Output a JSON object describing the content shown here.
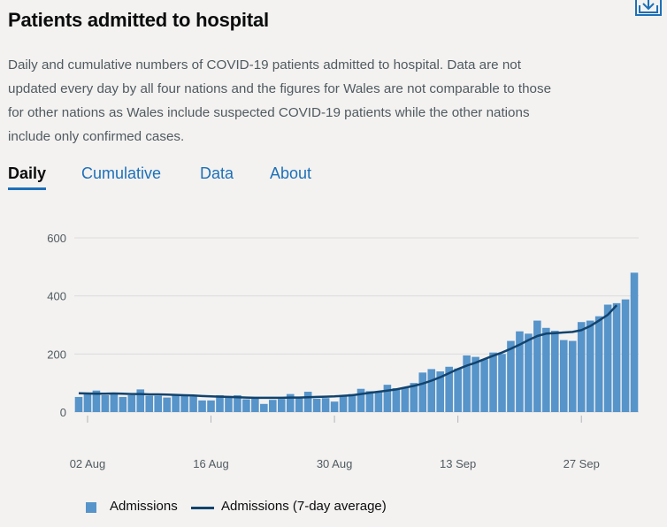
{
  "header": {
    "title": "Patients admitted to hospital",
    "download_icon": "download-icon"
  },
  "description": "Daily and cumulative numbers of COVID-19 patients admitted to hospital. Data are not updated every day by all four nations and the figures for Wales are not comparable to those for other nations as Wales include suspected COVID-19 patients while the other nations include only confirmed cases.",
  "tabs": [
    {
      "label": "Daily",
      "active": true
    },
    {
      "label": "Cumulative",
      "active": false
    },
    {
      "label": "Data",
      "active": false
    },
    {
      "label": "About",
      "active": false
    }
  ],
  "colors": {
    "bars": "#5694ca",
    "average_line": "#12436d",
    "link": "#1d70b8",
    "axis_text": "#505a5f"
  },
  "chart_data": {
    "type": "bar",
    "title": "",
    "xlabel": "",
    "ylabel": "",
    "ylim": [
      0,
      600
    ],
    "yticks": [
      "0",
      "200",
      "400",
      "600"
    ],
    "x_start": "2020-08-01",
    "xticks": [
      {
        "date": "2020-08-02",
        "label": "02 Aug"
      },
      {
        "date": "2020-08-16",
        "label": "16 Aug"
      },
      {
        "date": "2020-08-30",
        "label": "30 Aug"
      },
      {
        "date": "2020-09-13",
        "label": "13 Sep"
      },
      {
        "date": "2020-09-27",
        "label": "27 Sep"
      }
    ],
    "grid": true,
    "legend_position": "bottom",
    "series": [
      {
        "name": "Admissions",
        "kind": "bar",
        "values": [
          52,
          62,
          74,
          58,
          62,
          52,
          58,
          78,
          56,
          56,
          50,
          58,
          60,
          54,
          40,
          40,
          58,
          55,
          58,
          44,
          48,
          28,
          42,
          45,
          62,
          48,
          70,
          46,
          48,
          36,
          58,
          62,
          80,
          72,
          70,
          94,
          82,
          84,
          100,
          136,
          148,
          140,
          156,
          150,
          195,
          190,
          182,
          205,
          200,
          245,
          278,
          270,
          315,
          290,
          280,
          248,
          245,
          310,
          315,
          330,
          370,
          375,
          388,
          480
        ]
      },
      {
        "name": "Admissions (7-day average)",
        "kind": "line",
        "values": [
          65,
          64,
          63,
          63,
          64,
          63,
          62,
          62,
          61,
          61,
          60,
          59,
          58,
          57,
          55,
          54,
          53,
          52,
          51,
          50,
          49,
          49,
          49,
          49,
          50,
          50,
          51,
          52,
          53,
          54,
          56,
          58,
          62,
          66,
          70,
          74,
          78,
          84,
          90,
          98,
          108,
          120,
          134,
          148,
          160,
          170,
          182,
          194,
          205,
          218,
          232,
          248,
          262,
          270,
          272,
          274,
          276,
          282,
          296,
          315,
          335,
          368
        ]
      }
    ]
  },
  "legend": {
    "bar_label": "Admissions",
    "line_label": "Admissions (7-day average)"
  }
}
